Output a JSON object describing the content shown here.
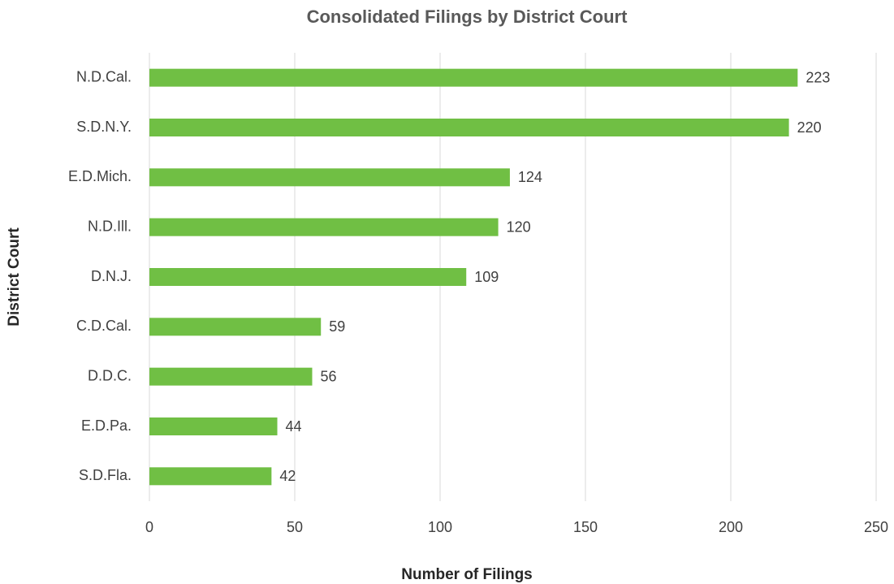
{
  "chart_data": {
    "type": "bar",
    "orientation": "horizontal",
    "title": "Consolidated Filings by District Court",
    "x_label": "Number of Filings",
    "y_label": "District Court",
    "categories": [
      "N.D.Cal.",
      "S.D.N.Y.",
      "E.D.Mich.",
      "N.D.Ill.",
      "D.N.J.",
      "C.D.Cal.",
      "D.D.C.",
      "E.D.Pa.",
      "S.D.Fla."
    ],
    "values": [
      223,
      220,
      124,
      120,
      109,
      59,
      56,
      44,
      42
    ],
    "color": "#70bf44",
    "xlim": [
      0,
      250
    ],
    "xticks": [
      0,
      50,
      100,
      150,
      200,
      250
    ],
    "grid": true
  }
}
